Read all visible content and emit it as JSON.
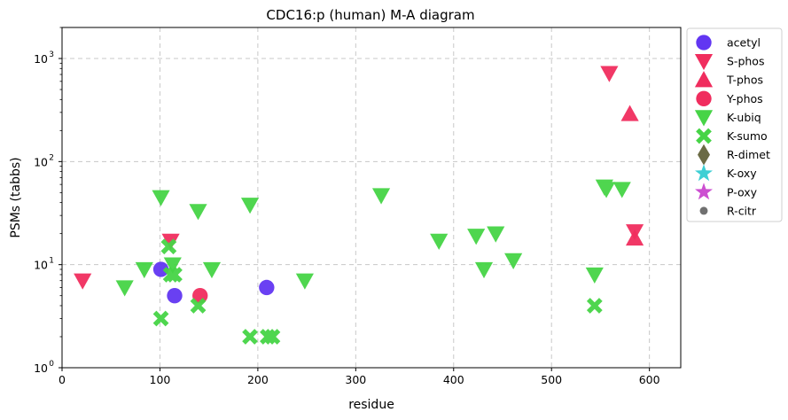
{
  "chart_data": {
    "type": "scatter",
    "title": "CDC16:p (human) M-A diagram",
    "xlabel": "residue",
    "ylabel": "PSMs (tabbs)",
    "xlim": [
      0,
      632
    ],
    "ylim": [
      1,
      2000
    ],
    "yscale": "log",
    "x_ticks": [
      0,
      100,
      200,
      300,
      400,
      500,
      600
    ],
    "y_ticks": [
      {
        "value": 1,
        "label": "10",
        "exp": "0"
      },
      {
        "value": 10,
        "label": "10",
        "exp": "1"
      },
      {
        "value": 100,
        "label": "10",
        "exp": "2"
      },
      {
        "value": 1000,
        "label": "10",
        "exp": "3"
      }
    ],
    "grid": true,
    "legend_position": "outside-right",
    "series": [
      {
        "name": "acetyl",
        "marker": "circle",
        "color": "#6236f2",
        "points": [
          [
            101,
            9
          ],
          [
            115,
            5
          ],
          [
            209,
            6
          ]
        ]
      },
      {
        "name": "S-phos",
        "marker": "triangle-down",
        "color": "#f02d5e",
        "points": [
          [
            21,
            7
          ],
          [
            111,
            17
          ],
          [
            559,
            720
          ],
          [
            585,
            21
          ]
        ]
      },
      {
        "name": "T-phos",
        "marker": "triangle-up",
        "color": "#f02d5e",
        "points": [
          [
            580,
            290
          ],
          [
            585,
            18
          ]
        ]
      },
      {
        "name": "Y-phos",
        "marker": "circle",
        "color": "#f02d5e",
        "points": [
          [
            141,
            5
          ]
        ]
      },
      {
        "name": "K-ubiq",
        "marker": "triangle-down",
        "color": "#46d446",
        "points": [
          [
            64,
            6
          ],
          [
            84,
            9
          ],
          [
            101,
            45
          ],
          [
            113,
            10
          ],
          [
            139,
            33
          ],
          [
            153,
            9
          ],
          [
            192,
            38
          ],
          [
            248,
            7
          ],
          [
            326,
            47
          ],
          [
            385,
            17
          ],
          [
            423,
            19
          ],
          [
            431,
            9
          ],
          [
            443,
            20
          ],
          [
            461,
            11
          ],
          [
            544,
            8
          ],
          [
            554,
            57
          ],
          [
            556,
            54
          ],
          [
            572,
            54
          ]
        ]
      },
      {
        "name": "K-sumo",
        "marker": "x",
        "color": "#46d446",
        "points": [
          [
            101,
            3
          ],
          [
            109,
            15
          ],
          [
            111,
            8
          ],
          [
            115,
            8
          ],
          [
            139,
            4
          ],
          [
            192,
            2
          ],
          [
            210,
            2
          ],
          [
            215,
            2
          ],
          [
            544,
            4
          ]
        ]
      },
      {
        "name": "R-dimet",
        "marker": "diamond",
        "color": "#6b6b45",
        "points": []
      },
      {
        "name": "K-oxy",
        "marker": "star",
        "color": "#3ecfd4",
        "points": []
      },
      {
        "name": "P-oxy",
        "marker": "star",
        "color": "#cc4fd1",
        "points": []
      },
      {
        "name": "R-citr",
        "marker": "dot",
        "color": "#707070",
        "points": []
      }
    ]
  }
}
